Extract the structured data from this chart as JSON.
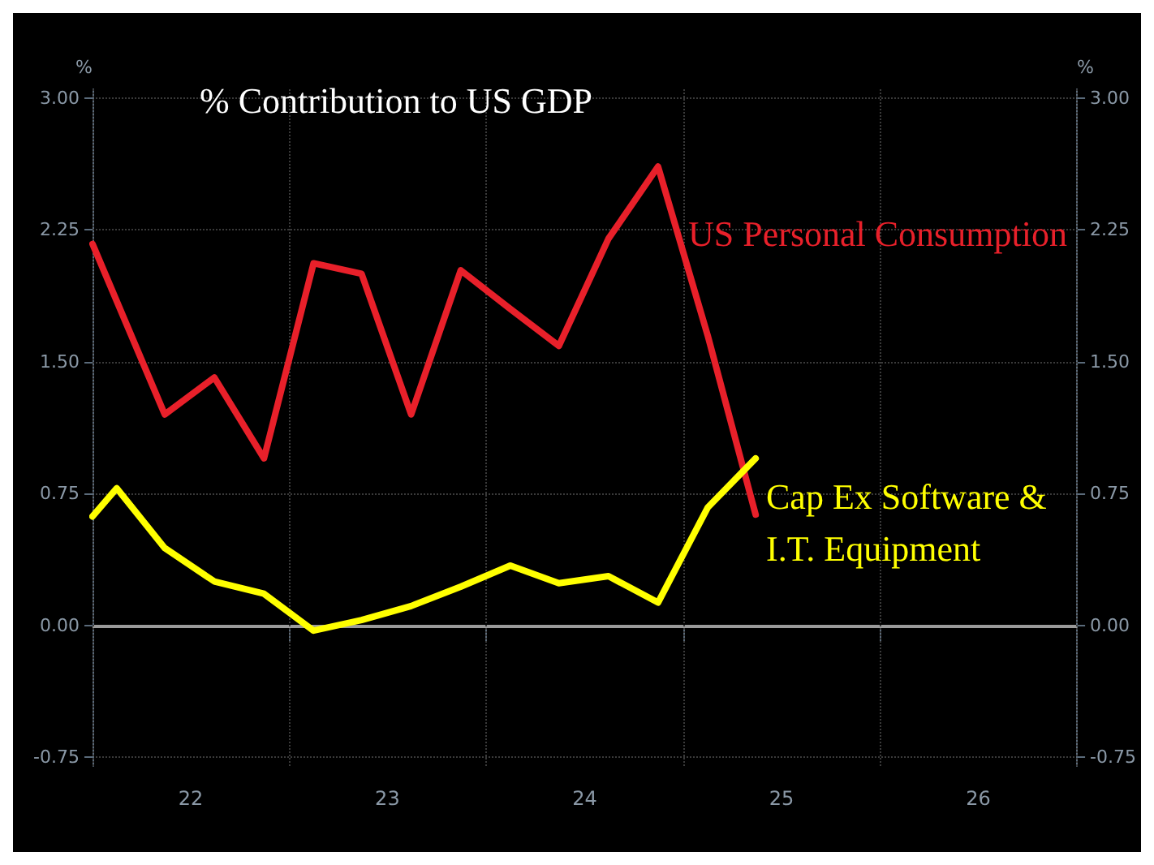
{
  "chart_data": {
    "type": "line",
    "title": "% Contribution to US GDP",
    "ylabel": "%",
    "y2label": "%",
    "series": [
      {
        "name": "US Personal Consumption",
        "color": "#e8202a",
        "x": [
          "2022-01-01",
          "2022-05-15",
          "2022-08-15",
          "2022-11-15",
          "2023-02-15",
          "2023-05-15",
          "2023-08-15",
          "2023-11-15",
          "2024-02-15",
          "2024-05-15",
          "2024-08-15",
          "2024-11-15",
          "2025-02-15",
          "2025-05-15"
        ],
        "values": [
          2.17,
          1.2,
          1.41,
          0.95,
          2.06,
          2.0,
          1.2,
          2.02,
          1.8,
          1.59,
          2.2,
          2.61,
          1.65,
          0.63
        ]
      },
      {
        "name": "Cap Ex Software & I.T. Equipment",
        "color": "#ffff00",
        "x": [
          "2022-01-01",
          "2022-02-15",
          "2022-05-15",
          "2022-08-15",
          "2022-11-15",
          "2023-02-15",
          "2023-05-15",
          "2023-08-15",
          "2023-11-15",
          "2024-02-15",
          "2024-05-15",
          "2024-08-15",
          "2024-11-15",
          "2025-02-15",
          "2025-05-15"
        ],
        "values": [
          0.62,
          0.78,
          0.44,
          0.25,
          0.18,
          -0.03,
          0.03,
          0.11,
          0.22,
          0.34,
          0.24,
          0.28,
          0.13,
          0.67,
          0.95
        ]
      }
    ],
    "xlim": [
      "2022-01-01",
      "2027-01-01"
    ],
    "xticks": [
      {
        "value": "2022-01-01",
        "label": null
      },
      {
        "value": "2022-07-02",
        "label": "22"
      },
      {
        "value": "2023-01-01",
        "label": null
      },
      {
        "value": "2023-07-02",
        "label": "23"
      },
      {
        "value": "2024-01-01",
        "label": null
      },
      {
        "value": "2024-07-02",
        "label": "24"
      },
      {
        "value": "2025-01-01",
        "label": null
      },
      {
        "value": "2025-07-02",
        "label": "25"
      },
      {
        "value": "2026-01-01",
        "label": null
      },
      {
        "value": "2026-07-02",
        "label": "26"
      },
      {
        "value": "2027-01-01",
        "label": null
      }
    ],
    "ylim": [
      -0.8,
      3.05
    ],
    "yticks": [
      {
        "value": -0.75,
        "label": "-0.75"
      },
      {
        "value": 0,
        "label": "0.00"
      },
      {
        "value": 0.75,
        "label": "0.75"
      },
      {
        "value": 1.5,
        "label": "1.50"
      },
      {
        "value": 2.25,
        "label": "2.25"
      },
      {
        "value": 3,
        "label": "3.00"
      }
    ],
    "y2lim": [
      -0.8,
      3.05
    ],
    "y2ticks": [
      {
        "value": -0.75,
        "label": "-0.75"
      },
      {
        "value": 0,
        "label": "0.00"
      },
      {
        "value": 0.75,
        "label": "0.75"
      },
      {
        "value": 1.5,
        "label": "1.50"
      },
      {
        "value": 2.25,
        "label": "2.25"
      },
      {
        "value": 3,
        "label": "3.00"
      }
    ],
    "ref_lines": [
      {
        "axis": "y",
        "value": 0,
        "label": null,
        "color": "#9a9a9a",
        "line_style": "solid"
      }
    ],
    "grid": true,
    "legend": false,
    "marker": "none",
    "line_style": "solid"
  }
}
